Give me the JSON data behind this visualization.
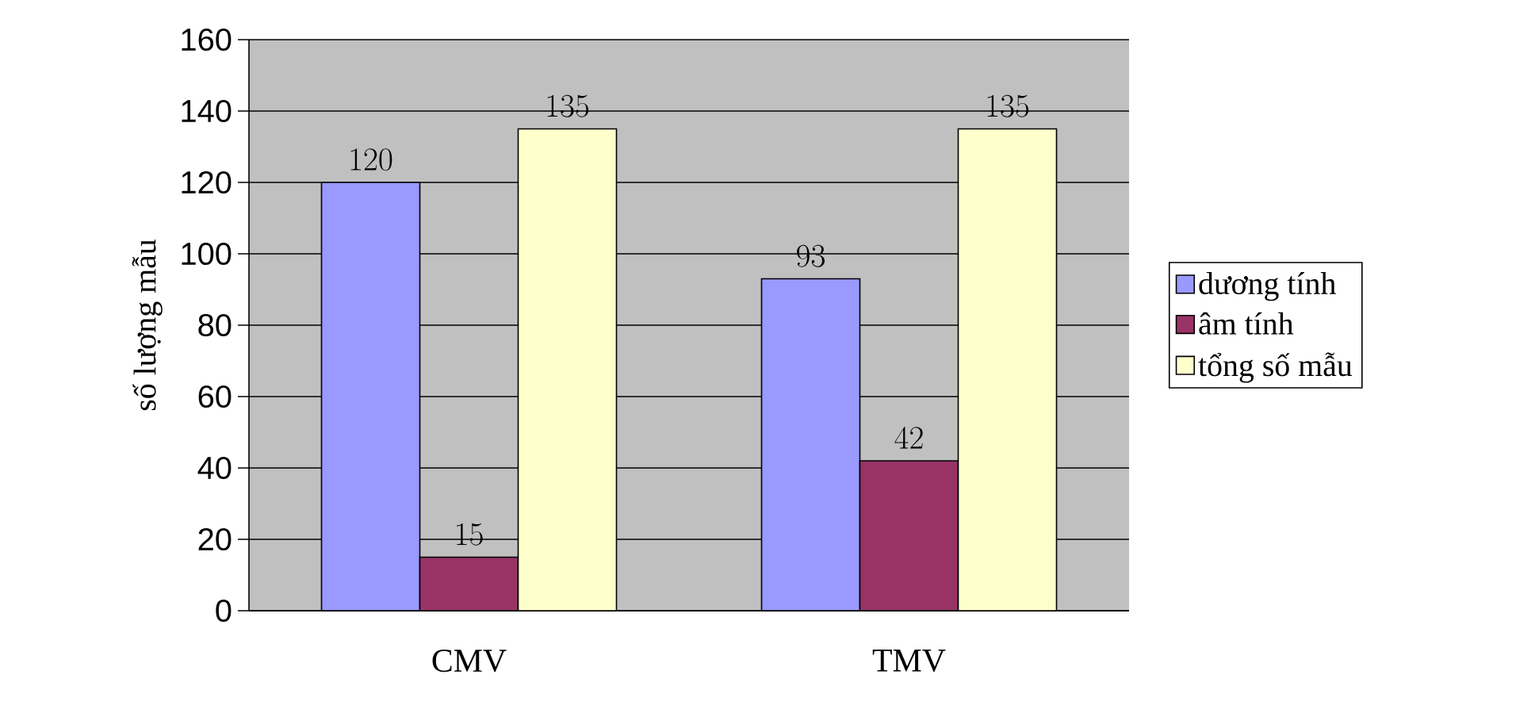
{
  "chart_data": {
    "type": "bar",
    "ylabel": "số lượng mẫu",
    "categories": [
      "CMV",
      "TMV"
    ],
    "series": [
      {
        "name": "dương tính",
        "color": "#9999ff",
        "values": [
          120,
          93
        ]
      },
      {
        "name": "âm tính",
        "color": "#993366",
        "values": [
          15,
          42
        ]
      },
      {
        "name": "tổng số mẫu",
        "color": "#ffffcc",
        "values": [
          135,
          135
        ]
      }
    ],
    "ylim": [
      0,
      160
    ],
    "yticks": [
      0,
      20,
      40,
      60,
      80,
      100,
      120,
      140,
      160
    ],
    "grid": "y",
    "legend": "right",
    "data_labels": true
  }
}
